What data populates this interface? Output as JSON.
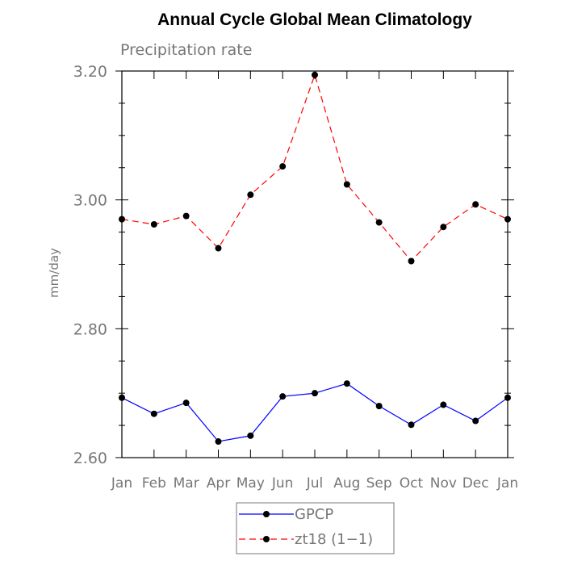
{
  "chart_data": {
    "type": "line",
    "title": "Annual Cycle Global Mean Climatology",
    "subtitle": "Precipitation rate",
    "ylabel": "mm/day",
    "xlabel": "",
    "ylim": [
      2.6,
      3.2
    ],
    "yticks": [
      2.6,
      2.8,
      3.0,
      3.2
    ],
    "ytick_labels": [
      "2.60",
      "2.80",
      "3.00",
      "3.20"
    ],
    "categories": [
      "Jan",
      "Feb",
      "Mar",
      "Apr",
      "May",
      "Jun",
      "Jul",
      "Aug",
      "Sep",
      "Oct",
      "Nov",
      "Dec",
      "Jan"
    ],
    "series": [
      {
        "name": "GPCP",
        "color": "#0000ff",
        "dash": "solid",
        "marker": "filled-circle",
        "values": [
          2.693,
          2.668,
          2.685,
          2.625,
          2.634,
          2.695,
          2.7,
          2.715,
          2.68,
          2.651,
          2.682,
          2.657,
          2.693
        ]
      },
      {
        "name": "zt18 (1−1)",
        "color": "#ff0000",
        "dash": "dashed",
        "marker": "filled-circle",
        "values": [
          2.97,
          2.962,
          2.975,
          2.925,
          3.008,
          3.052,
          3.194,
          3.024,
          2.965,
          2.905,
          2.958,
          2.993,
          2.97
        ]
      }
    ],
    "legend_position": "bottom-center",
    "grid": false
  }
}
